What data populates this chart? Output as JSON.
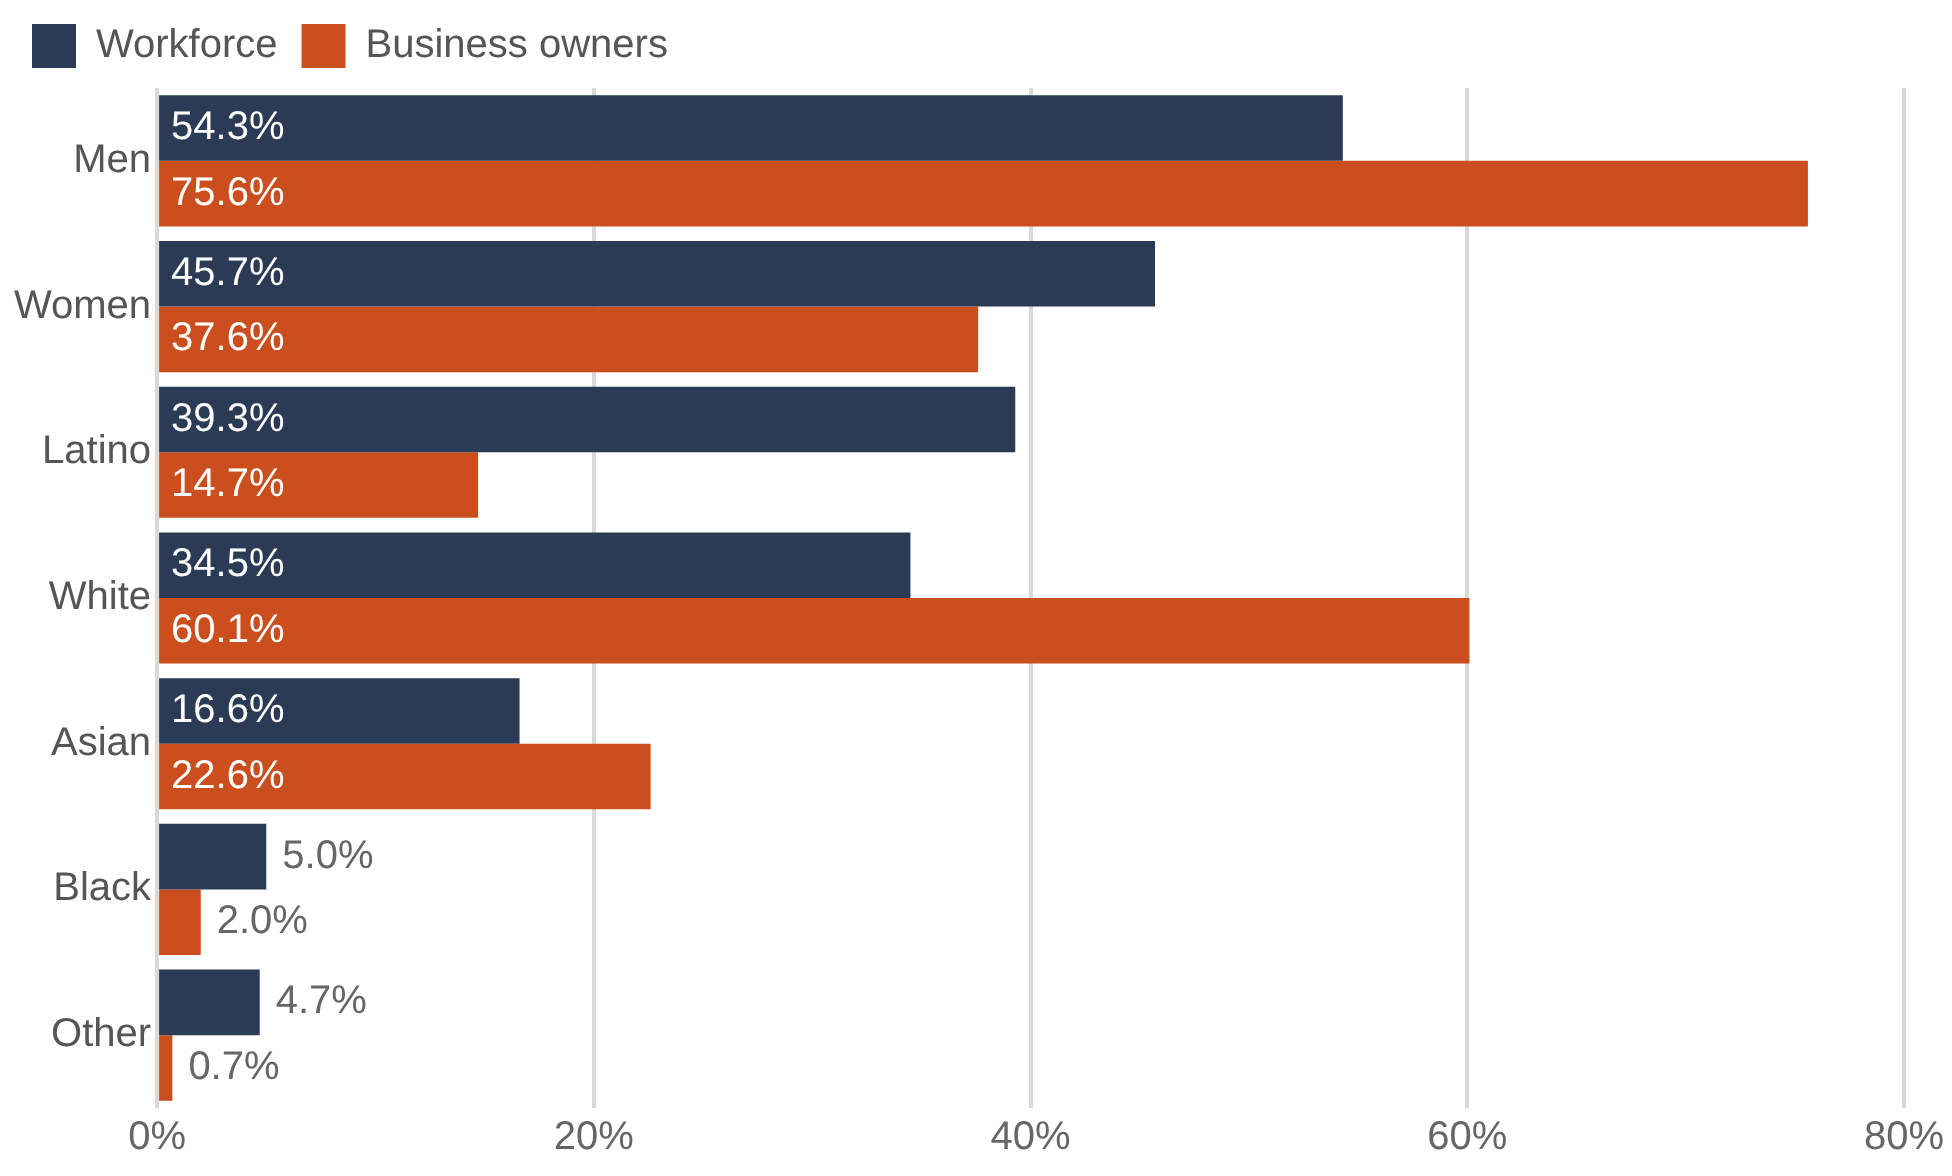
{
  "chart_data": {
    "type": "bar",
    "orientation": "horizontal",
    "categories": [
      "Men",
      "Women",
      "Latino",
      "White",
      "Asian",
      "Black",
      "Other"
    ],
    "series": [
      {
        "name": "Workforce",
        "color": "#2b3a55",
        "values": [
          54.3,
          45.7,
          39.3,
          34.5,
          16.6,
          5.0,
          4.7
        ],
        "value_labels": [
          "54.3%",
          "45.7%",
          "39.3%",
          "34.5%",
          "16.6%",
          "5.0%",
          "4.7%"
        ]
      },
      {
        "name": "Business owners",
        "color": "#cb4f1e",
        "values": [
          75.6,
          37.6,
          14.7,
          60.1,
          22.6,
          2.0,
          0.7
        ],
        "value_labels": [
          "75.6%",
          "37.6%",
          "14.7%",
          "60.1%",
          "22.6%",
          "2.0%",
          "0.7%"
        ]
      }
    ],
    "xlim": [
      0,
      80
    ],
    "xticks": [
      {
        "value": 0,
        "label": "0%"
      },
      {
        "value": 20,
        "label": "20%"
      },
      {
        "value": 40,
        "label": "40%"
      },
      {
        "value": 60,
        "label": "60%"
      },
      {
        "value": 80,
        "label": "80%"
      }
    ],
    "grid": "x",
    "legend": "top left"
  }
}
